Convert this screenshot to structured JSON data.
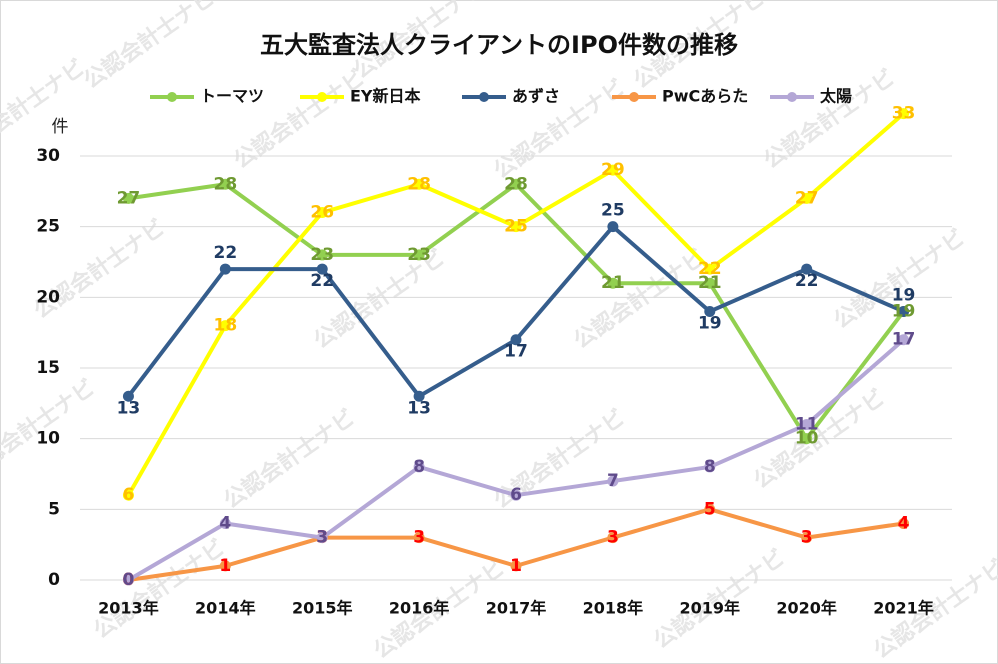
{
  "chart_data": {
    "type": "line",
    "title": "五大監査法人クライアントのIPO件数の推移",
    "y_label": "件",
    "watermark": "公認会計士ナビ",
    "categories": [
      "2013年",
      "2014年",
      "2015年",
      "2016年",
      "2017年",
      "2018年",
      "2019年",
      "2020年",
      "2021年"
    ],
    "ylim": [
      0,
      30
    ],
    "yticks": [
      0,
      5,
      10,
      15,
      20,
      25,
      30
    ],
    "grid": true,
    "legend": "top",
    "series": [
      {
        "name": "トーマツ",
        "color": "#92d050",
        "label_color": "#6f9a32",
        "values": [
          27,
          28,
          23,
          23,
          28,
          21,
          21,
          10,
          19
        ]
      },
      {
        "name": "EY新日本",
        "color": "#ffff00",
        "label_color": "#ffc000",
        "values": [
          6,
          18,
          26,
          28,
          25,
          29,
          22,
          27,
          33
        ]
      },
      {
        "name": "あずさ",
        "color": "#355d8c",
        "label_color": "#1f3b63",
        "values": [
          13,
          22,
          22,
          13,
          17,
          25,
          19,
          22,
          19
        ]
      },
      {
        "name": "PwCあらた",
        "color": "#f79646",
        "label_color": "#ff0000",
        "values": [
          0,
          1,
          3,
          3,
          1,
          3,
          5,
          3,
          4
        ]
      },
      {
        "name": "太陽",
        "color": "#b4a7d6",
        "label_color": "#5f4b8b",
        "values": [
          0,
          4,
          3,
          8,
          6,
          7,
          8,
          11,
          17
        ]
      }
    ]
  }
}
